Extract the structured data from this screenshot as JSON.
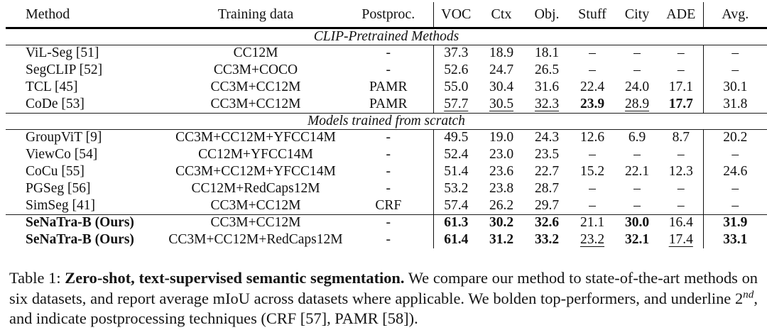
{
  "table": {
    "columns": [
      {
        "label": "Method"
      },
      {
        "label": "Training data"
      },
      {
        "label": "Postproc."
      },
      {
        "label": "VOC"
      },
      {
        "label": "Ctx"
      },
      {
        "label": "Obj."
      },
      {
        "label": "Stuff"
      },
      {
        "label": "City"
      },
      {
        "label": "ADE"
      },
      {
        "label": "Avg."
      }
    ],
    "sections": [
      {
        "header": "CLIP-Pretrained Methods",
        "rows": [
          {
            "method": "ViL-Seg [51]",
            "training": "CC12M",
            "postproc": "-",
            "cells": [
              {
                "t": "37.3"
              },
              {
                "t": "18.9"
              },
              {
                "t": "18.1"
              },
              {
                "t": "–"
              },
              {
                "t": "–"
              },
              {
                "t": "–"
              },
              {
                "t": "–"
              }
            ]
          },
          {
            "method": "SegCLIP [52]",
            "training": "CC3M+COCO",
            "postproc": "-",
            "cells": [
              {
                "t": "52.6"
              },
              {
                "t": "24.7"
              },
              {
                "t": "26.5"
              },
              {
                "t": "–"
              },
              {
                "t": "–"
              },
              {
                "t": "–"
              },
              {
                "t": "–"
              }
            ]
          },
          {
            "method": "TCL [45]",
            "training": "CC3M+CC12M",
            "postproc": "PAMR",
            "cells": [
              {
                "t": "55.0"
              },
              {
                "t": "30.4"
              },
              {
                "t": "31.6"
              },
              {
                "t": "22.4"
              },
              {
                "t": "24.0"
              },
              {
                "t": "17.1"
              },
              {
                "t": "30.1"
              }
            ]
          },
          {
            "method": "CoDe [53]",
            "training": "CC3M+CC12M",
            "postproc": "PAMR",
            "cells": [
              {
                "t": "57.7",
                "u": true
              },
              {
                "t": "30.5",
                "u": true
              },
              {
                "t": "32.3",
                "u": true
              },
              {
                "t": "23.9",
                "b": true
              },
              {
                "t": "28.9",
                "u": true
              },
              {
                "t": "17.7",
                "b": true
              },
              {
                "t": "31.8"
              }
            ]
          }
        ]
      },
      {
        "header": "Models trained from scratch",
        "rows": [
          {
            "method": "GroupViT [9]",
            "training": "CC3M+CC12M+YFCC14M",
            "postproc": "-",
            "cells": [
              {
                "t": "49.5"
              },
              {
                "t": "19.0"
              },
              {
                "t": "24.3"
              },
              {
                "t": "12.6"
              },
              {
                "t": "6.9"
              },
              {
                "t": "8.7"
              },
              {
                "t": "20.2"
              }
            ]
          },
          {
            "method": "ViewCo [54]",
            "training": "CC12M+YFCC14M",
            "postproc": "-",
            "cells": [
              {
                "t": "52.4"
              },
              {
                "t": "23.0"
              },
              {
                "t": "23.5"
              },
              {
                "t": "–"
              },
              {
                "t": "–"
              },
              {
                "t": "–"
              },
              {
                "t": "–"
              }
            ]
          },
          {
            "method": "CoCu [55]",
            "training": "CC3M+CC12M+YFCC14M",
            "postproc": "-",
            "cells": [
              {
                "t": "51.4"
              },
              {
                "t": "23.6"
              },
              {
                "t": "22.7"
              },
              {
                "t": "15.2"
              },
              {
                "t": "22.1"
              },
              {
                "t": "12.3"
              },
              {
                "t": "24.6"
              }
            ]
          },
          {
            "method": "PGSeg [56]",
            "training": "CC12M+RedCaps12M",
            "postproc": "-",
            "cells": [
              {
                "t": "53.2"
              },
              {
                "t": "23.8"
              },
              {
                "t": "28.7"
              },
              {
                "t": "–"
              },
              {
                "t": "–"
              },
              {
                "t": "–"
              },
              {
                "t": "–"
              }
            ]
          },
          {
            "method": "SimSeg [41]",
            "training": "CC3M+CC12M",
            "postproc": "CRF",
            "cells": [
              {
                "t": "57.4"
              },
              {
                "t": "26.2"
              },
              {
                "t": "29.7"
              },
              {
                "t": "–"
              },
              {
                "t": "–"
              },
              {
                "t": "–"
              },
              {
                "t": "–"
              }
            ]
          },
          {
            "method": "SeNaTra-B (Ours)",
            "bold": true,
            "rule_above": true,
            "training": "CC3M+CC12M",
            "postproc": "-",
            "cells": [
              {
                "t": "61.3",
                "b": true
              },
              {
                "t": "30.2",
                "b": true
              },
              {
                "t": "32.6",
                "b": true
              },
              {
                "t": "21.1"
              },
              {
                "t": "30.0",
                "b": true
              },
              {
                "t": "16.4"
              },
              {
                "t": "31.9",
                "b": true
              }
            ]
          },
          {
            "method": "SeNaTra-B (Ours)",
            "bold": true,
            "training": "CC3M+CC12M+RedCaps12M",
            "postproc": "-",
            "cells": [
              {
                "t": "61.4",
                "b": true
              },
              {
                "t": "31.2",
                "b": true
              },
              {
                "t": "33.2",
                "b": true
              },
              {
                "t": "23.2",
                "u": true
              },
              {
                "t": "32.1",
                "b": true
              },
              {
                "t": "17.4",
                "u": true
              },
              {
                "t": "33.1",
                "b": true
              }
            ]
          }
        ]
      }
    ]
  },
  "caption": {
    "label": "Table 1: ",
    "title": "Zero-shot, text-supervised semantic segmentation.",
    "body1": " We compare our method to state-of-the-art methods on six datasets, and report average mIoU across datasets where applicable. We bolden top-performers, and underline 2",
    "sup": "nd",
    "body2": ", and indicate postprocessing techniques (CRF [57], PAMR [58])."
  }
}
